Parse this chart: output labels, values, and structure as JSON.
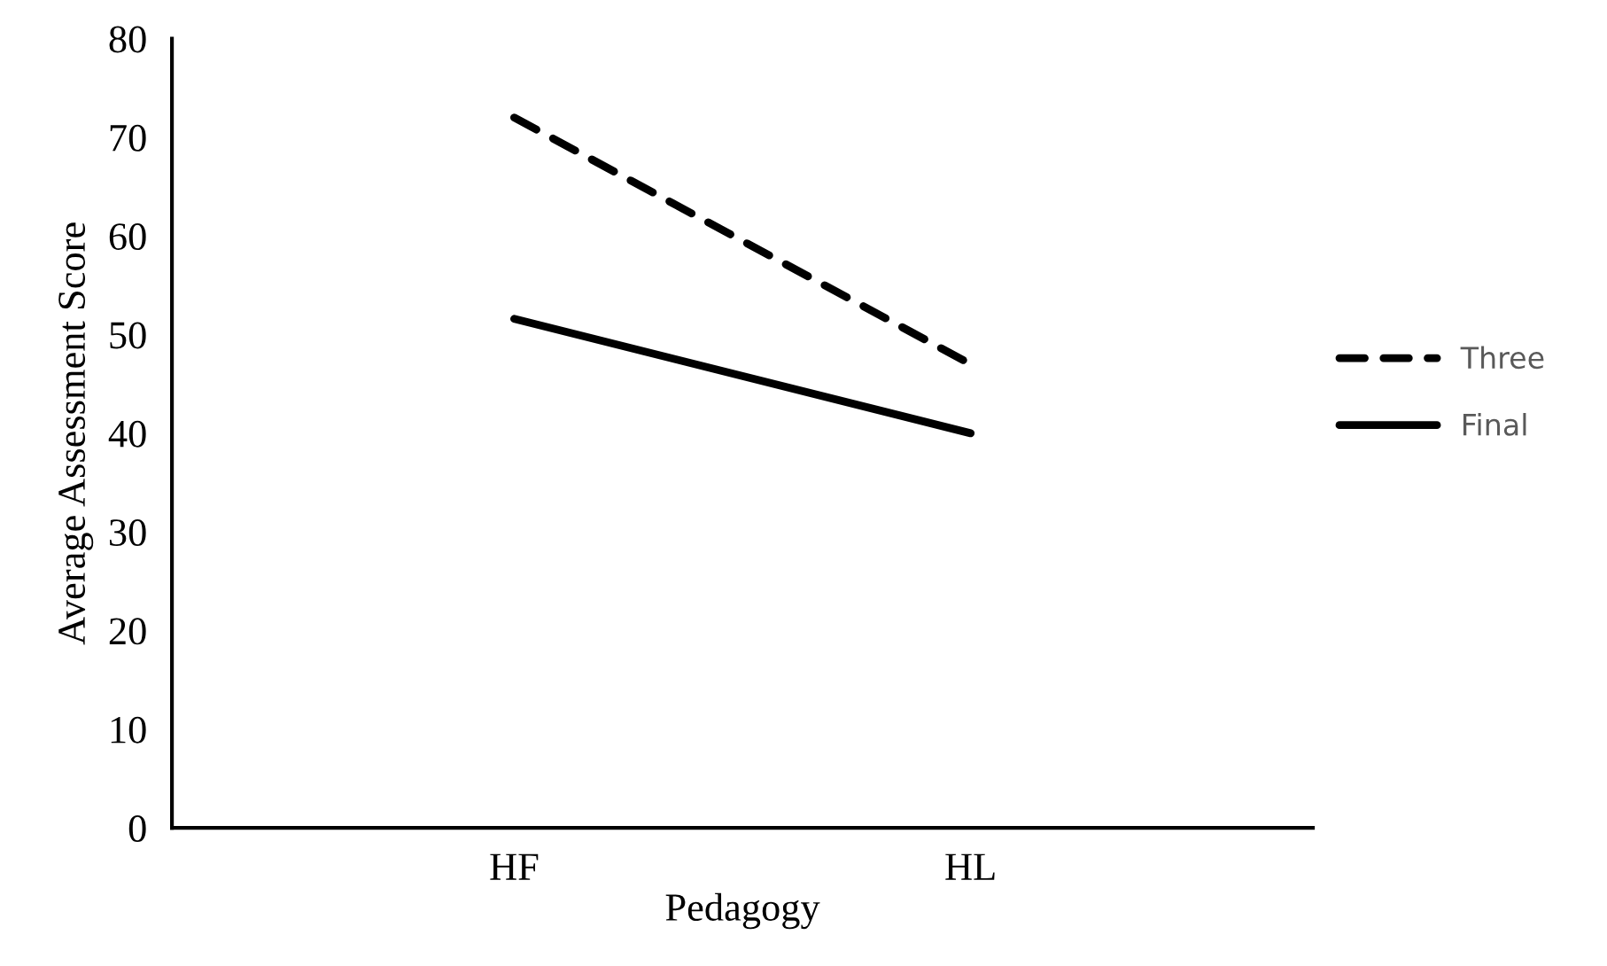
{
  "chart_data": {
    "type": "line",
    "xlabel": "Pedagogy",
    "ylabel": "Average Assessment Score",
    "categories": [
      "HF",
      "HL"
    ],
    "series": [
      {
        "name": "Three",
        "color": "#000000",
        "values": [
          72,
          47
        ],
        "line_style": "dashed"
      },
      {
        "name": "Final",
        "color": "#000000",
        "values": [
          51.6,
          40
        ],
        "line_style": "solid"
      }
    ],
    "ylim": [
      0,
      80
    ],
    "yticks": [
      0,
      10,
      20,
      30,
      40,
      50,
      60,
      70,
      80
    ],
    "grid": false,
    "legend": "right",
    "marker": "none"
  }
}
